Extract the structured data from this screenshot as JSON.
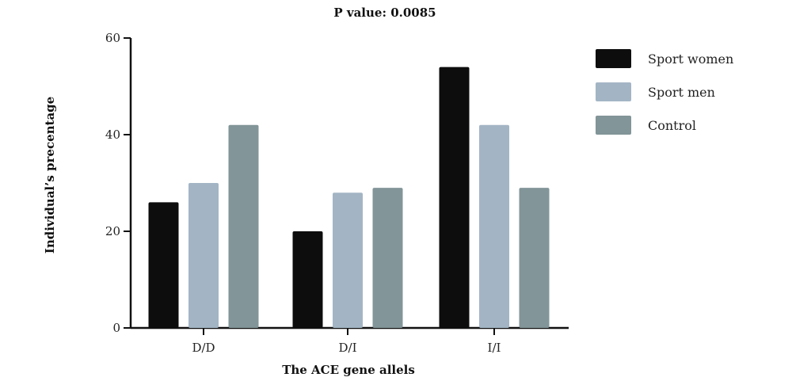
{
  "chart_data": {
    "type": "bar",
    "title": "P value: 0.0085",
    "xlabel": "The ACE gene allels",
    "ylabel": "Individual’s precentage",
    "categories": [
      "D/D",
      "D/I",
      "I/I"
    ],
    "yticks": [
      0,
      20,
      40,
      60
    ],
    "ylim": [
      0,
      60
    ],
    "grid": false,
    "legend_position": "right",
    "series": [
      {
        "name": "Sport women",
        "color": "#0d0d0d",
        "values": [
          26,
          20,
          54
        ]
      },
      {
        "name": "Sport men",
        "color": "#a3b5c5",
        "values": [
          30,
          28,
          42
        ]
      },
      {
        "name": "Control",
        "color": "#829598",
        "values": [
          42,
          29,
          29
        ]
      }
    ]
  }
}
